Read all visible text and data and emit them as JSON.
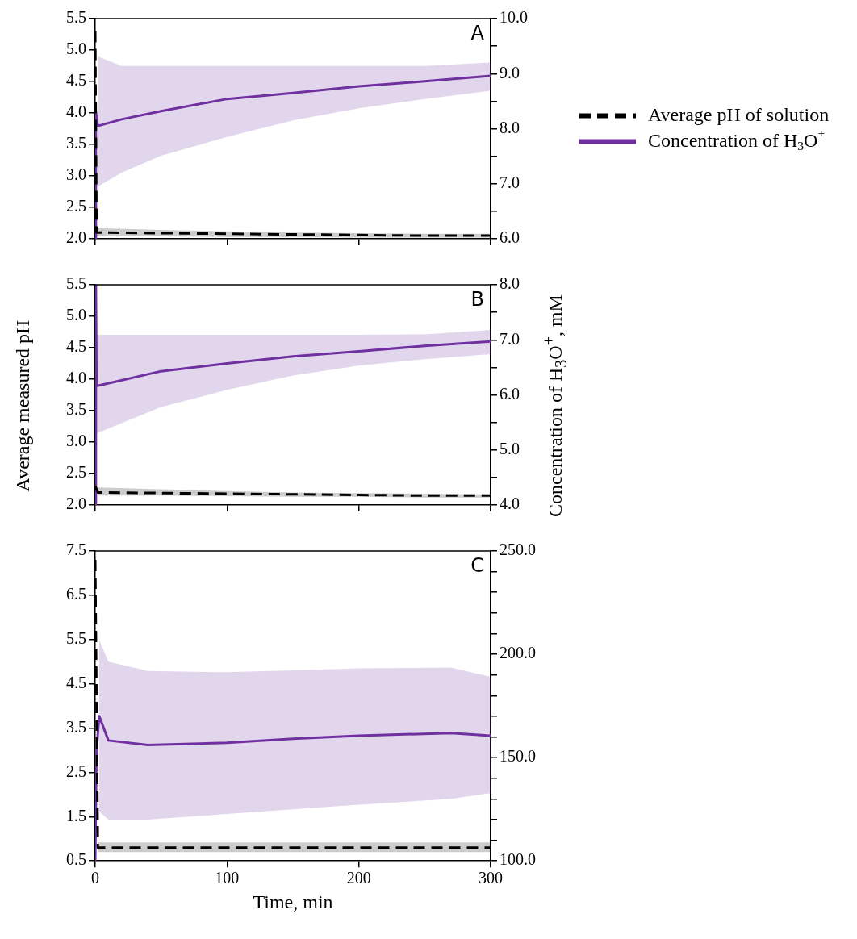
{
  "chart_data": [
    {
      "type": "line",
      "annotations": [
        "A"
      ],
      "legend": "right",
      "tick_labels": "y",
      "marker": "none",
      "xlim": [
        0,
        300
      ],
      "xticks": [
        0,
        100,
        200,
        300
      ],
      "ylim": [
        2,
        5.5
      ],
      "yticks": [
        {
          "value": 2,
          "label": "2.0"
        },
        {
          "value": 2.5,
          "label": "2.5"
        },
        {
          "value": 3,
          "label": "3.0"
        },
        {
          "value": 3.5,
          "label": "3.5"
        },
        {
          "value": 4,
          "label": "4.0"
        },
        {
          "value": 4.5,
          "label": "4.5"
        },
        {
          "value": 5,
          "label": "5.0"
        },
        {
          "value": 5.5,
          "label": "5.5"
        }
      ],
      "y2lim": [
        6,
        10
      ],
      "y2ticks": [
        {
          "value": 6,
          "label": "6.0"
        },
        {
          "value": 6.5,
          "label": null
        },
        {
          "value": 7,
          "label": "7.0"
        },
        {
          "value": 7.5,
          "label": null
        },
        {
          "value": 8,
          "label": "8.0"
        },
        {
          "value": 8.5,
          "label": null
        },
        {
          "value": 9,
          "label": "9.0"
        },
        {
          "value": 9.5,
          "label": null
        },
        {
          "value": 10,
          "label": "10.0"
        }
      ],
      "series": [
        {
          "name": "Average pH of solution",
          "color": "#000000",
          "line_style": "dashed",
          "x": [
            0,
            1,
            50,
            100,
            150,
            200,
            250,
            300
          ],
          "values": [
            5.3,
            2.1,
            2.09,
            2.08,
            2.07,
            2.06,
            2.05,
            2.05
          ],
          "lower": [
            null,
            2.05,
            2.04,
            2.03,
            2.03,
            2.02,
            2.02,
            2.02
          ],
          "upper": [
            null,
            2.17,
            2.14,
            2.12,
            2.1,
            2.09,
            2.08,
            2.08
          ]
        },
        {
          "name": "Concentration of H$_{3}$O$^{+}$",
          "color": "#7030a0",
          "line_style": "solid",
          "axis": "y2",
          "x": [
            0,
            0.5,
            2,
            20,
            50,
            100,
            150,
            200,
            250,
            300
          ],
          "values": [
            6.0,
            8.3,
            8.05,
            8.17,
            8.32,
            8.54,
            8.65,
            8.77,
            8.86,
            8.96
          ],
          "lower": [
            null,
            null,
            6.95,
            7.2,
            7.51,
            7.85,
            8.15,
            8.37,
            8.54,
            8.69
          ],
          "upper": [
            null,
            null,
            9.31,
            9.14,
            9.14,
            9.14,
            9.14,
            9.14,
            9.14,
            9.2
          ]
        }
      ]
    },
    {
      "type": "line",
      "annotations": [
        "B"
      ],
      "ylabel": "Average measured pH",
      "y2label": "Concentration of H$_{3}$O$^{+}$, mM",
      "tick_labels": "y",
      "marker": "none",
      "xlim": [
        0,
        300
      ],
      "xticks": [
        0,
        100,
        200,
        300
      ],
      "ylim": [
        2,
        5.5
      ],
      "yticks": [
        {
          "value": 2,
          "label": "2.0"
        },
        {
          "value": 2.5,
          "label": "2.5"
        },
        {
          "value": 3,
          "label": "3.0"
        },
        {
          "value": 3.5,
          "label": "3.5"
        },
        {
          "value": 4,
          "label": "4.0"
        },
        {
          "value": 4.5,
          "label": "4.5"
        },
        {
          "value": 5,
          "label": "5.0"
        },
        {
          "value": 5.5,
          "label": "5.5"
        }
      ],
      "y2lim": [
        4,
        8
      ],
      "y2ticks": [
        {
          "value": 4,
          "label": "4.0"
        },
        {
          "value": 4.5,
          "label": null
        },
        {
          "value": 5,
          "label": "5.0"
        },
        {
          "value": 5.5,
          "label": null
        },
        {
          "value": 6,
          "label": "6.0"
        },
        {
          "value": 6.5,
          "label": null
        },
        {
          "value": 7,
          "label": "7.0"
        },
        {
          "value": 7.5,
          "label": null
        },
        {
          "value": 8,
          "label": "8.0"
        }
      ],
      "series": [
        {
          "color": "#000000",
          "line_style": "dashed",
          "x": [
            0,
            2,
            50,
            100,
            150,
            200,
            250,
            300
          ],
          "values": [
            2.3,
            2.2,
            2.19,
            2.18,
            2.17,
            2.16,
            2.15,
            2.15
          ],
          "lower": [
            null,
            2.15,
            2.15,
            2.14,
            2.13,
            2.13,
            2.12,
            2.12
          ],
          "upper": [
            null,
            2.28,
            2.25,
            2.22,
            2.2,
            2.19,
            2.18,
            2.17
          ]
        },
        {
          "color": "#7030a0",
          "line_style": "solid",
          "axis": "y2",
          "x": [
            0,
            0.5,
            1,
            50,
            100,
            150,
            200,
            250,
            300
          ],
          "values": [
            4.0,
            8.0,
            6.16,
            6.43,
            6.57,
            6.7,
            6.79,
            6.89,
            6.97
          ],
          "lower": [
            null,
            null,
            5.3,
            5.78,
            6.09,
            6.35,
            6.53,
            6.65,
            6.74
          ],
          "upper": [
            null,
            null,
            7.09,
            7.09,
            7.09,
            7.09,
            7.09,
            7.1,
            7.18
          ]
        }
      ]
    },
    {
      "type": "line",
      "annotations": [
        "C"
      ],
      "xlabel": "Time, min",
      "marker": "none",
      "xlim": [
        0,
        300
      ],
      "xticks": [
        0,
        100,
        200,
        300
      ],
      "ylim": [
        0.5,
        7.5
      ],
      "yticks": [
        0.5,
        1.5,
        2.5,
        3.5,
        4.5,
        5.5,
        6.5,
        7.5
      ],
      "y2lim": [
        100,
        250
      ],
      "y2ticks": [
        {
          "value": 100,
          "label": "100.0"
        },
        {
          "value": 110,
          "label": null
        },
        {
          "value": 120,
          "label": null
        },
        {
          "value": 130,
          "label": null
        },
        {
          "value": 140,
          "label": null
        },
        {
          "value": 150,
          "label": "150.0"
        },
        {
          "value": 160,
          "label": null
        },
        {
          "value": 170,
          "label": null
        },
        {
          "value": 180,
          "label": null
        },
        {
          "value": 190,
          "label": null
        },
        {
          "value": 200,
          "label": "200.0"
        },
        {
          "value": 210,
          "label": null
        },
        {
          "value": 220,
          "label": null
        },
        {
          "value": 230,
          "label": null
        },
        {
          "value": 240,
          "label": null
        },
        {
          "value": 250,
          "label": "250.0"
        }
      ],
      "series": [
        {
          "color": "#000000",
          "line_style": "dashed",
          "x": [
            0,
            2,
            50,
            100,
            150,
            200,
            250,
            300
          ],
          "values": [
            7.3,
            0.8,
            0.8,
            0.8,
            0.8,
            0.8,
            0.8,
            0.8
          ],
          "lower": [
            null,
            0.7,
            0.7,
            0.7,
            0.7,
            0.7,
            0.7,
            0.7
          ],
          "upper": [
            null,
            0.92,
            0.92,
            0.92,
            0.92,
            0.92,
            0.92,
            0.92
          ]
        },
        {
          "color": "#7030a0",
          "line_style": "solid",
          "axis": "y2",
          "x": [
            0,
            1,
            3,
            10,
            40,
            100,
            150,
            200,
            270,
            300
          ],
          "values": [
            100,
            152.7,
            170.1,
            158.3,
            156.1,
            157.2,
            159.1,
            160.6,
            161.9,
            160.6
          ],
          "lower": [
            null,
            null,
            123.8,
            120,
            120,
            122.7,
            125,
            127.2,
            130,
            132.8
          ],
          "upper": [
            null,
            null,
            207.1,
            196.4,
            191.9,
            191.3,
            192.2,
            193.2,
            193.6,
            189.1
          ]
        }
      ]
    }
  ]
}
